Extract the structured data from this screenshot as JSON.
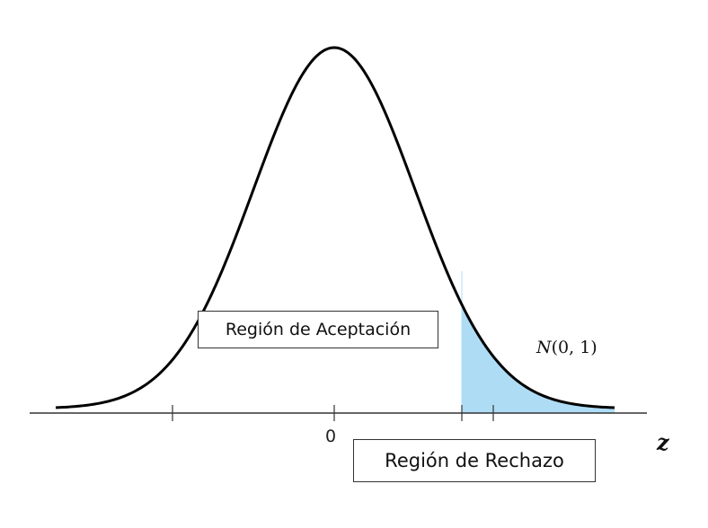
{
  "accept_label": "Región de Aceptación",
  "reject_label": "Región de Rechazo",
  "distribution": {
    "symbol": "N",
    "params": "(0, 1)"
  },
  "axis_variable": "z",
  "tick_label_zero": "0",
  "colors": {
    "curve": "#000000",
    "rejection_fill": "#aedcf5",
    "axis": "#333333"
  }
}
